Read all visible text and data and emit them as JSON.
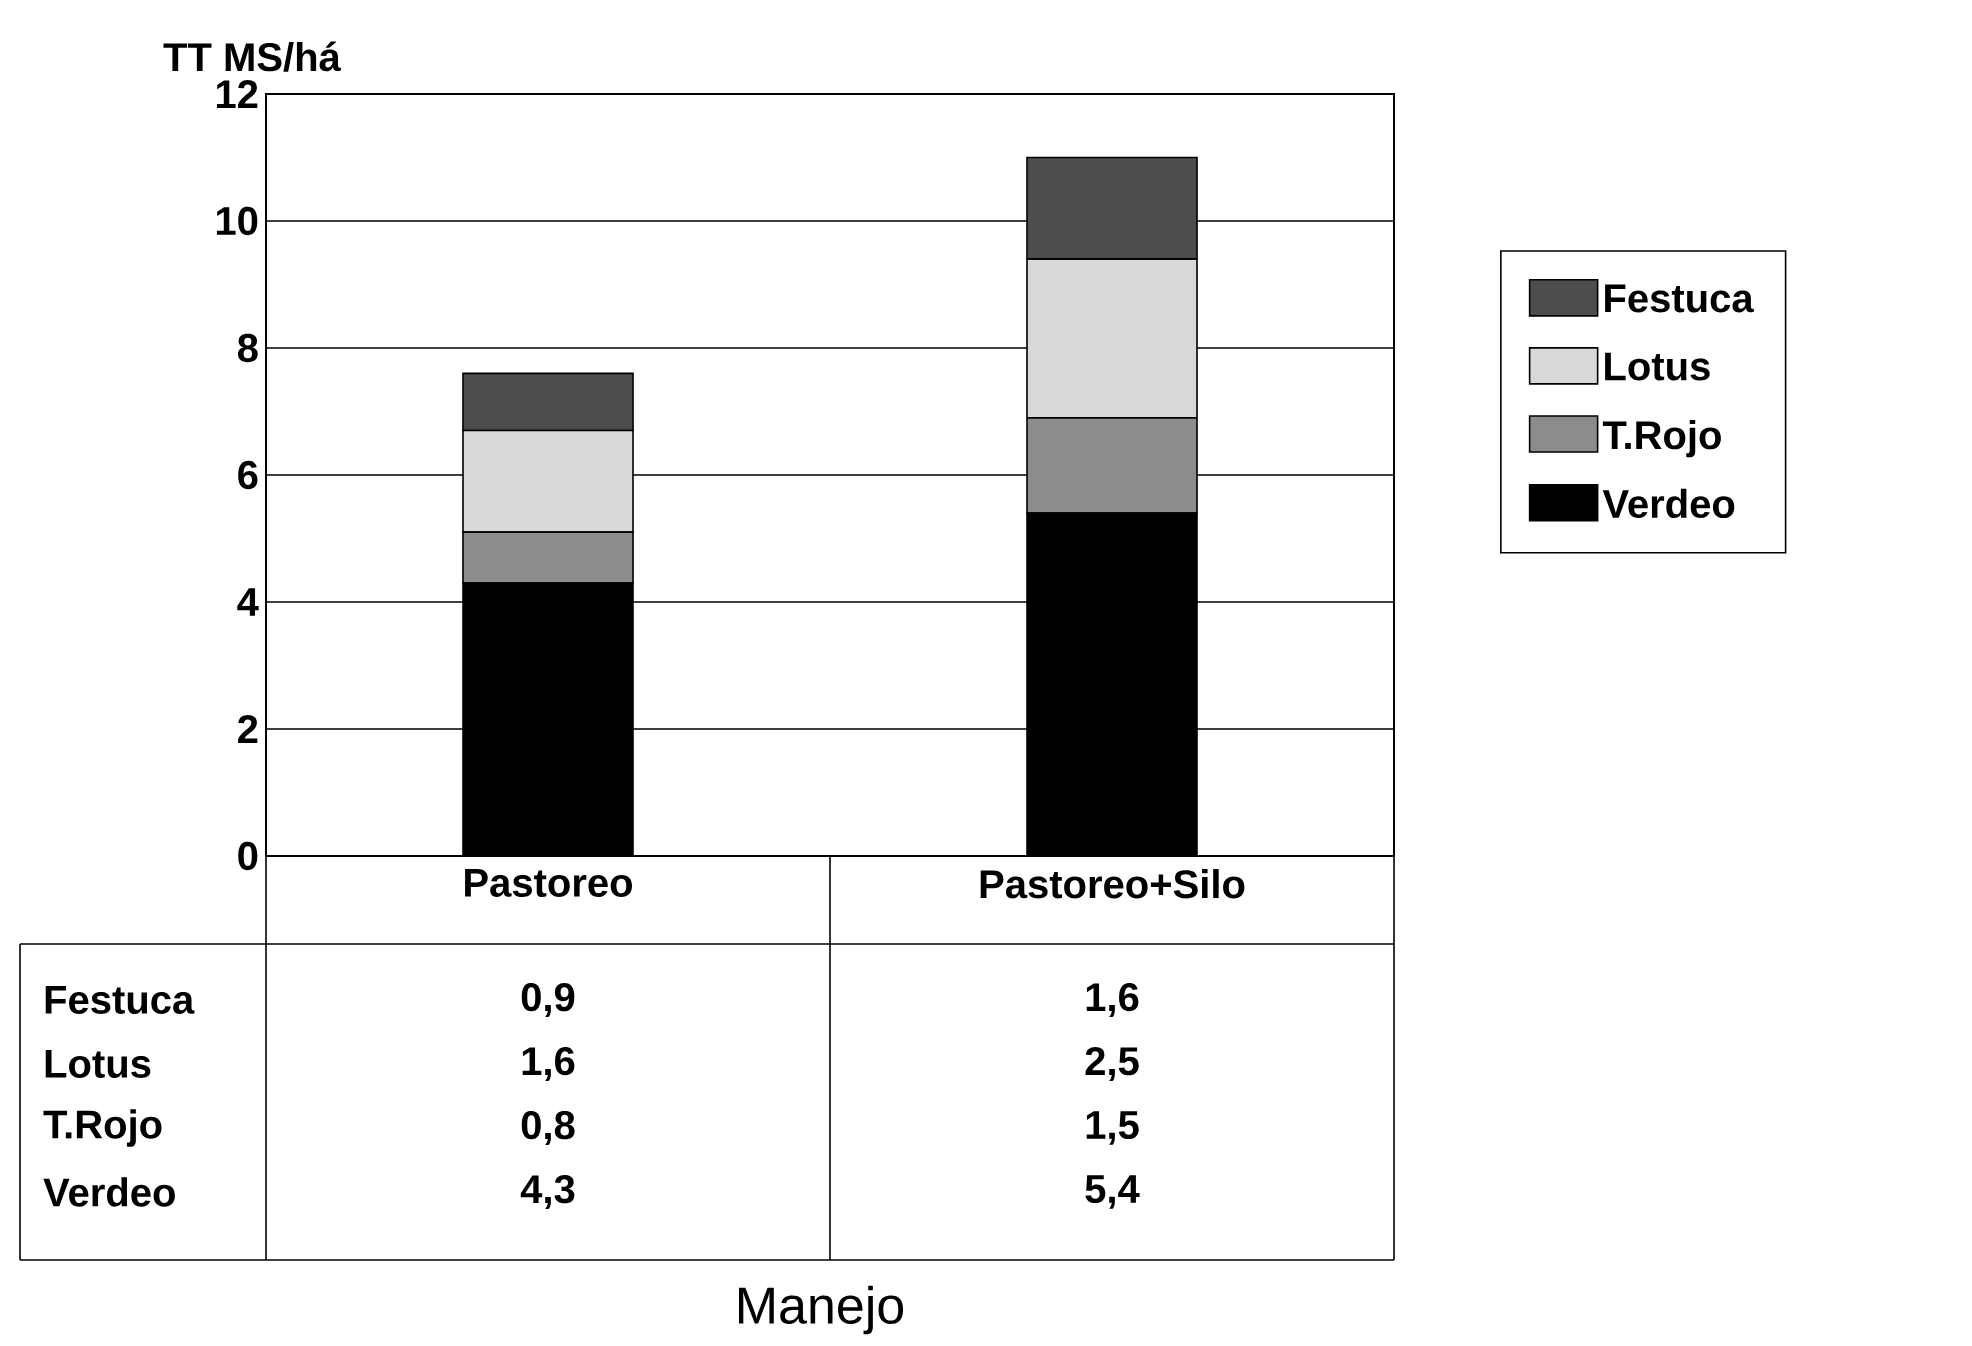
{
  "chart_data": {
    "type": "bar",
    "stacked": true,
    "ylabel": "TT MS/há",
    "annotations": [
      "Manejo"
    ],
    "categories": [
      "Pastoreo",
      "Pastoreo+Silo"
    ],
    "series": [
      {
        "name": "Verdeo",
        "color": "#000000",
        "values": [
          4.3,
          5.4
        ],
        "value_labels": [
          "4,3",
          "5,4"
        ]
      },
      {
        "name": "T.Rojo",
        "color": "#8c8c8c",
        "values": [
          0.8,
          1.5
        ],
        "value_labels": [
          "0,8",
          "1,5"
        ]
      },
      {
        "name": "Lotus",
        "color": "#d9d9d9",
        "values": [
          1.6,
          2.5
        ],
        "value_labels": [
          "1,6",
          "2,5"
        ]
      },
      {
        "name": "Festuca",
        "color": "#4d4d4d",
        "values": [
          0.9,
          1.6
        ],
        "value_labels": [
          "0,9",
          "1,6"
        ]
      }
    ],
    "ylim": [
      0,
      12
    ],
    "yticks": [
      0,
      2,
      4,
      6,
      8,
      10,
      12
    ],
    "grid": "y",
    "legend": "right"
  }
}
